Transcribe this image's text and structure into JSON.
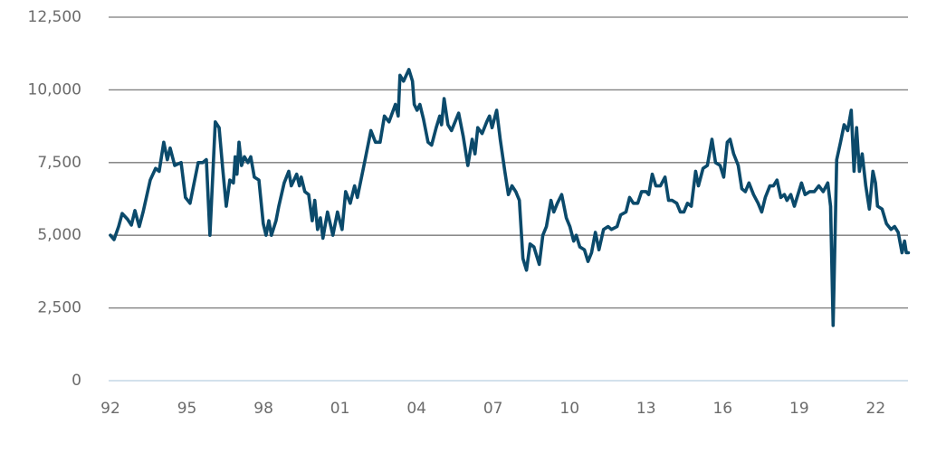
{
  "chart_data": {
    "type": "line",
    "x": [
      1992.0,
      1992.14,
      1992.32,
      1992.46,
      1992.67,
      1992.82,
      1992.96,
      1993.13,
      1993.28,
      1993.56,
      1993.77,
      1993.91,
      1994.09,
      1994.23,
      1994.34,
      1994.52,
      1994.77,
      1994.94,
      1995.12,
      1995.44,
      1995.62,
      1995.76,
      1995.9,
      1996.11,
      1996.26,
      1996.4,
      1996.54,
      1996.68,
      1996.82,
      1996.89,
      1996.96,
      1997.04,
      1997.14,
      1997.25,
      1997.39,
      1997.5,
      1997.64,
      1997.82,
      1997.99,
      1998.1,
      1998.21,
      1998.31,
      1998.49,
      1998.6,
      1998.81,
      1998.99,
      1999.09,
      1999.3,
      1999.41,
      1999.48,
      1999.62,
      1999.77,
      1999.91,
      2000.01,
      2000.12,
      2000.23,
      2000.33,
      2000.51,
      2000.72,
      2000.9,
      2001.08,
      2001.22,
      2001.4,
      2001.57,
      2001.68,
      2001.96,
      2002.21,
      2002.39,
      2002.57,
      2002.74,
      2002.92,
      2003.17,
      2003.28,
      2003.35,
      2003.49,
      2003.7,
      2003.84,
      2003.91,
      2004.02,
      2004.13,
      2004.27,
      2004.45,
      2004.59,
      2004.77,
      2004.91,
      2004.98,
      2005.08,
      2005.23,
      2005.37,
      2005.65,
      2005.83,
      2006.01,
      2006.18,
      2006.29,
      2006.4,
      2006.57,
      2006.75,
      2006.86,
      2006.96,
      2007.14,
      2007.28,
      2007.46,
      2007.6,
      2007.74,
      2007.89,
      2008.03,
      2008.17,
      2008.31,
      2008.45,
      2008.6,
      2008.81,
      2008.95,
      2009.09,
      2009.27,
      2009.38,
      2009.52,
      2009.69,
      2009.87,
      2010.01,
      2010.16,
      2010.26,
      2010.4,
      2010.58,
      2010.72,
      2010.86,
      2011.01,
      2011.15,
      2011.33,
      2011.51,
      2011.64,
      2011.86,
      2012.0,
      2012.21,
      2012.35,
      2012.5,
      2012.67,
      2012.82,
      2013.0,
      2013.1,
      2013.24,
      2013.38,
      2013.56,
      2013.74,
      2013.88,
      2014.02,
      2014.2,
      2014.34,
      2014.48,
      2014.62,
      2014.77,
      2014.94,
      2015.05,
      2015.23,
      2015.4,
      2015.58,
      2015.72,
      2015.9,
      2016.04,
      2016.18,
      2016.29,
      2016.43,
      2016.61,
      2016.75,
      2016.89,
      2017.03,
      2017.21,
      2017.39,
      2017.53,
      2017.67,
      2017.85,
      2017.99,
      2018.13,
      2018.28,
      2018.42,
      2018.52,
      2018.67,
      2018.81,
      2018.95,
      2019.09,
      2019.23,
      2019.41,
      2019.59,
      2019.77,
      2019.94,
      2020.12,
      2020.23,
      2020.33,
      2020.47,
      2020.62,
      2020.76,
      2020.9,
      2021.04,
      2021.15,
      2021.25,
      2021.36,
      2021.47,
      2021.61,
      2021.75,
      2021.89,
      2021.99,
      2022.07,
      2022.25,
      2022.42,
      2022.6,
      2022.74,
      2022.88,
      2023.03,
      2023.13,
      2023.2,
      2023.28
    ],
    "series": [
      {
        "color": "#0b4a6b",
        "values": [
          5000,
          4850,
          5300,
          5750,
          5550,
          5350,
          5850,
          5300,
          5800,
          6900,
          7300,
          7200,
          8200,
          7600,
          8000,
          7400,
          7500,
          6300,
          6100,
          7500,
          7500,
          7600,
          5000,
          8900,
          8700,
          7300,
          6000,
          6900,
          6800,
          7700,
          7100,
          8200,
          7400,
          7700,
          7500,
          7700,
          7000,
          6900,
          5400,
          5000,
          5500,
          5000,
          5500,
          6000,
          6800,
          7200,
          6700,
          7100,
          6700,
          7000,
          6500,
          6400,
          5500,
          6200,
          5200,
          5600,
          4900,
          5800,
          5000,
          5800,
          5200,
          6500,
          6100,
          6700,
          6300,
          7500,
          8600,
          8200,
          8200,
          9100,
          8900,
          9500,
          9100,
          10500,
          10300,
          10700,
          10300,
          9500,
          9300,
          9500,
          9000,
          8200,
          8100,
          8700,
          9100,
          8800,
          9700,
          8800,
          8600,
          9200,
          8400,
          7400,
          8300,
          7800,
          8700,
          8500,
          8900,
          9100,
          8700,
          9300,
          8300,
          7200,
          6400,
          6700,
          6500,
          6200,
          4200,
          3800,
          4700,
          4600,
          4000,
          5000,
          5300,
          6200,
          5800,
          6100,
          6400,
          5600,
          5300,
          4800,
          5000,
          4600,
          4500,
          4100,
          4400,
          5100,
          4500,
          5200,
          5300,
          5200,
          5300,
          5700,
          5800,
          6300,
          6100,
          6100,
          6500,
          6500,
          6400,
          7100,
          6700,
          6700,
          7000,
          6200,
          6200,
          6100,
          5800,
          5800,
          6100,
          6000,
          7200,
          6700,
          7300,
          7400,
          8300,
          7500,
          7400,
          7000,
          8200,
          8300,
          7800,
          7400,
          6600,
          6500,
          6800,
          6400,
          6100,
          5800,
          6300,
          6700,
          6700,
          6900,
          6300,
          6400,
          6200,
          6400,
          6000,
          6400,
          6800,
          6400,
          6500,
          6500,
          6700,
          6500,
          6800,
          6000,
          1900,
          7600,
          8200,
          8800,
          8600,
          9300,
          7200,
          8700,
          7200,
          7800,
          6700,
          5900,
          7200,
          6800,
          6000,
          5900,
          5400,
          5200,
          5300,
          5100,
          4400,
          4800,
          4400,
          4400
        ]
      }
    ],
    "xlim": [
      1992,
      2023.3
    ],
    "xticks": [
      {
        "value": 1992,
        "label": "92"
      },
      {
        "value": 1995,
        "label": "95"
      },
      {
        "value": 1998,
        "label": "98"
      },
      {
        "value": 2001,
        "label": "01"
      },
      {
        "value": 2004,
        "label": "04"
      },
      {
        "value": 2007,
        "label": "07"
      },
      {
        "value": 2010,
        "label": "10"
      },
      {
        "value": 2013,
        "label": "13"
      },
      {
        "value": 2016,
        "label": "16"
      },
      {
        "value": 2019,
        "label": "19"
      },
      {
        "value": 2022,
        "label": "22"
      }
    ],
    "ylim": [
      0,
      12500
    ],
    "yticks": [
      0,
      {
        "value": 2500,
        "label": "2,500"
      },
      {
        "value": 5000,
        "label": "5,000"
      },
      {
        "value": 7500,
        "label": "7,500"
      },
      {
        "value": 10000,
        "label": "10,000"
      },
      {
        "value": 12500,
        "label": "12,500"
      }
    ],
    "grid": true
  }
}
